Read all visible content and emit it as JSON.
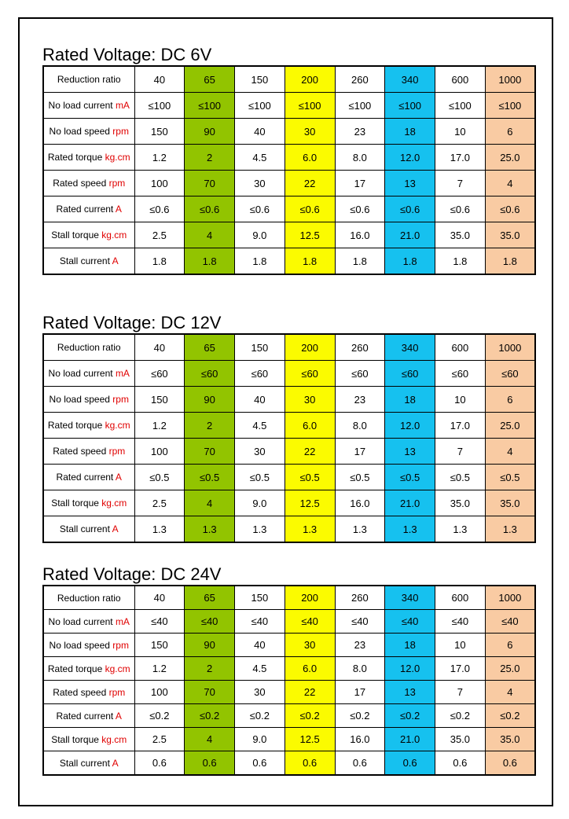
{
  "tables": [
    {
      "title": "Rated Voltage: DC 6V",
      "rows": [
        {
          "label": "Reduction ratio",
          "unit": "",
          "values": [
            "40",
            "65",
            "150",
            "200",
            "260",
            "340",
            "600",
            "1000"
          ]
        },
        {
          "label": "No load current ",
          "unit": "mA",
          "values": [
            "≤100",
            "≤100",
            "≤100",
            "≤100",
            "≤100",
            "≤100",
            "≤100",
            "≤100"
          ]
        },
        {
          "label": "No load speed ",
          "unit": "rpm",
          "values": [
            "150",
            "90",
            "40",
            "30",
            "23",
            "18",
            "10",
            "6"
          ]
        },
        {
          "label": "Rated torque ",
          "unit": "kg.cm",
          "values": [
            "1.2",
            "2",
            "4.5",
            "6.0",
            "8.0",
            "12.0",
            "17.0",
            "25.0"
          ]
        },
        {
          "label": "Rated speed ",
          "unit": "rpm",
          "values": [
            "100",
            "70",
            "30",
            "22",
            "17",
            "13",
            "7",
            "4"
          ]
        },
        {
          "label": "Rated current ",
          "unit": "A",
          "values": [
            "≤0.6",
            "≤0.6",
            "≤0.6",
            "≤0.6",
            "≤0.6",
            "≤0.6",
            "≤0.6",
            "≤0.6"
          ]
        },
        {
          "label": "Stall torque ",
          "unit": "kg.cm",
          "values": [
            "2.5",
            "4",
            "9.0",
            "12.5",
            "16.0",
            "21.0",
            "35.0",
            "35.0"
          ]
        },
        {
          "label": "Stall current ",
          "unit": "A",
          "values": [
            "1.8",
            "1.8",
            "1.8",
            "1.8",
            "1.8",
            "1.8",
            "1.8",
            "1.8"
          ]
        }
      ]
    },
    {
      "title": "Rated Voltage: DC 12V",
      "rows": [
        {
          "label": "Reduction ratio",
          "unit": "",
          "values": [
            "40",
            "65",
            "150",
            "200",
            "260",
            "340",
            "600",
            "1000"
          ]
        },
        {
          "label": "No load current ",
          "unit": "mA",
          "values": [
            "≤60",
            "≤60",
            "≤60",
            "≤60",
            "≤60",
            "≤60",
            "≤60",
            "≤60"
          ]
        },
        {
          "label": "No load speed ",
          "unit": "rpm",
          "values": [
            "150",
            "90",
            "40",
            "30",
            "23",
            "18",
            "10",
            "6"
          ]
        },
        {
          "label": "Rated torque ",
          "unit": "kg.cm",
          "values": [
            "1.2",
            "2",
            "4.5",
            "6.0",
            "8.0",
            "12.0",
            "17.0",
            "25.0"
          ]
        },
        {
          "label": "Rated speed ",
          "unit": "rpm",
          "values": [
            "100",
            "70",
            "30",
            "22",
            "17",
            "13",
            "7",
            "4"
          ]
        },
        {
          "label": "Rated current ",
          "unit": "A",
          "values": [
            "≤0.5",
            "≤0.5",
            "≤0.5",
            "≤0.5",
            "≤0.5",
            "≤0.5",
            "≤0.5",
            "≤0.5"
          ]
        },
        {
          "label": "Stall torque ",
          "unit": "kg.cm",
          "values": [
            "2.5",
            "4",
            "9.0",
            "12.5",
            "16.0",
            "21.0",
            "35.0",
            "35.0"
          ]
        },
        {
          "label": "Stall current ",
          "unit": "A",
          "values": [
            "1.3",
            "1.3",
            "1.3",
            "1.3",
            "1.3",
            "1.3",
            "1.3",
            "1.3"
          ]
        }
      ]
    },
    {
      "title": "Rated Voltage: DC 24V",
      "rows": [
        {
          "label": "Reduction ratio",
          "unit": "",
          "values": [
            "40",
            "65",
            "150",
            "200",
            "260",
            "340",
            "600",
            "1000"
          ]
        },
        {
          "label": "No load current ",
          "unit": "mA",
          "values": [
            "≤40",
            "≤40",
            "≤40",
            "≤40",
            "≤40",
            "≤40",
            "≤40",
            "≤40"
          ]
        },
        {
          "label": "No load speed ",
          "unit": "rpm",
          "values": [
            "150",
            "90",
            "40",
            "30",
            "23",
            "18",
            "10",
            "6"
          ]
        },
        {
          "label": "Rated torque ",
          "unit": "kg.cm",
          "values": [
            "1.2",
            "2",
            "4.5",
            "6.0",
            "8.0",
            "12.0",
            "17.0",
            "25.0"
          ]
        },
        {
          "label": "Rated speed ",
          "unit": "rpm",
          "values": [
            "100",
            "70",
            "30",
            "22",
            "17",
            "13",
            "7",
            "4"
          ]
        },
        {
          "label": "Rated current ",
          "unit": "A",
          "values": [
            "≤0.2",
            "≤0.2",
            "≤0.2",
            "≤0.2",
            "≤0.2",
            "≤0.2",
            "≤0.2",
            "≤0.2"
          ]
        },
        {
          "label": "Stall torque ",
          "unit": "kg.cm",
          "values": [
            "2.5",
            "4",
            "9.0",
            "12.5",
            "16.0",
            "21.0",
            "35.0",
            "35.0"
          ]
        },
        {
          "label": "Stall current ",
          "unit": "A",
          "values": [
            "0.6",
            "0.6",
            "0.6",
            "0.6",
            "0.6",
            "0.6",
            "0.6",
            "0.6"
          ]
        }
      ]
    }
  ],
  "column_colors": [
    "",
    "#92c400",
    "",
    "#fbfb00",
    "",
    "#16c1ef",
    "",
    "#f9cba3"
  ],
  "unit_color": "#e00000"
}
